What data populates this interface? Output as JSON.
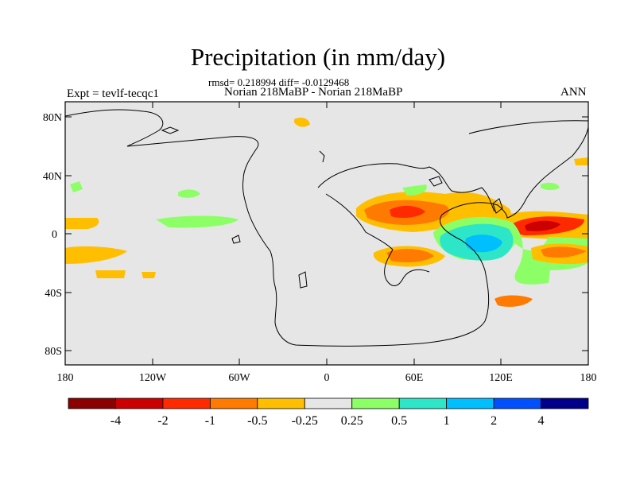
{
  "title": "Precipitation (in mm/day)",
  "stats_line": "rmsd= 0.218994 diff= -0.0129468",
  "subtitle": "Norian 218MaBP - Norian 218MaBP",
  "expt_label": "Expt = tevlf-tecqc1",
  "season": "ANN",
  "lat_ticks": [
    "80N",
    "40N",
    "0",
    "40S",
    "80S"
  ],
  "lon_ticks": [
    "180",
    "120W",
    "60W",
    "0",
    "60E",
    "120E",
    "180"
  ],
  "colorbar": {
    "colors": [
      "#8b0000",
      "#cc0000",
      "#ff2a00",
      "#ff7a00",
      "#ffbf00",
      "#e6e6e6",
      "#8cff66",
      "#2de6c8",
      "#00bfff",
      "#0050ff",
      "#00008b"
    ],
    "labels": [
      "-4",
      "-2",
      "-1",
      "-0.5",
      "-0.25",
      "0.25",
      "0.5",
      "1",
      "2",
      "4"
    ]
  },
  "colors": {
    "background_field": "#e6e6e6",
    "coastline": "#000000"
  }
}
